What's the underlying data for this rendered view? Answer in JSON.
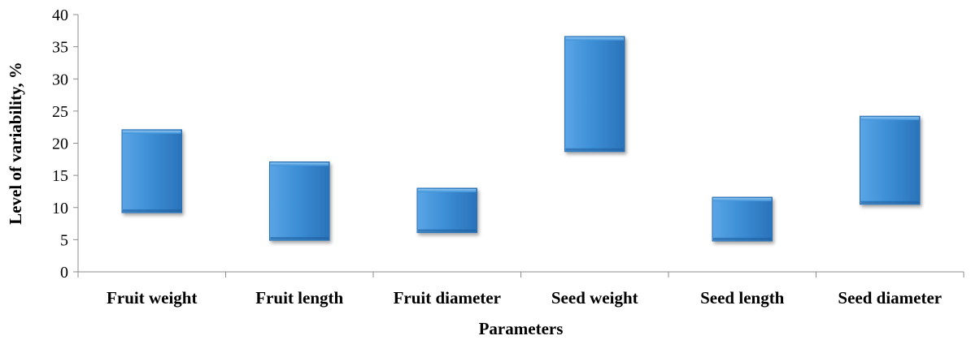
{
  "chart_data": {
    "type": "bar",
    "subtype": "floating-range",
    "title": "",
    "xlabel": "Parameters",
    "ylabel": "Level of  variability, %",
    "ylim": [
      0,
      40
    ],
    "yticks": [
      0,
      5,
      10,
      15,
      20,
      25,
      30,
      35,
      40
    ],
    "categories": [
      "Fruit weight",
      "Fruit length",
      "Fruit diameter",
      "Seed weight",
      "Seed length",
      "Seed diameter"
    ],
    "series": [
      {
        "low": [
          9.2,
          4.9,
          6.1,
          18.7,
          4.8,
          10.5
        ],
        "high": [
          22.1,
          17.1,
          13.0,
          36.6,
          11.6,
          24.2
        ]
      }
    ],
    "grid": false,
    "legend": "none",
    "colors": {
      "bar_fill": "#3d8fd6",
      "bar_light": "#7fbcef",
      "bar_dark": "#1f5f9e",
      "axis": "#8c8c8c"
    }
  }
}
